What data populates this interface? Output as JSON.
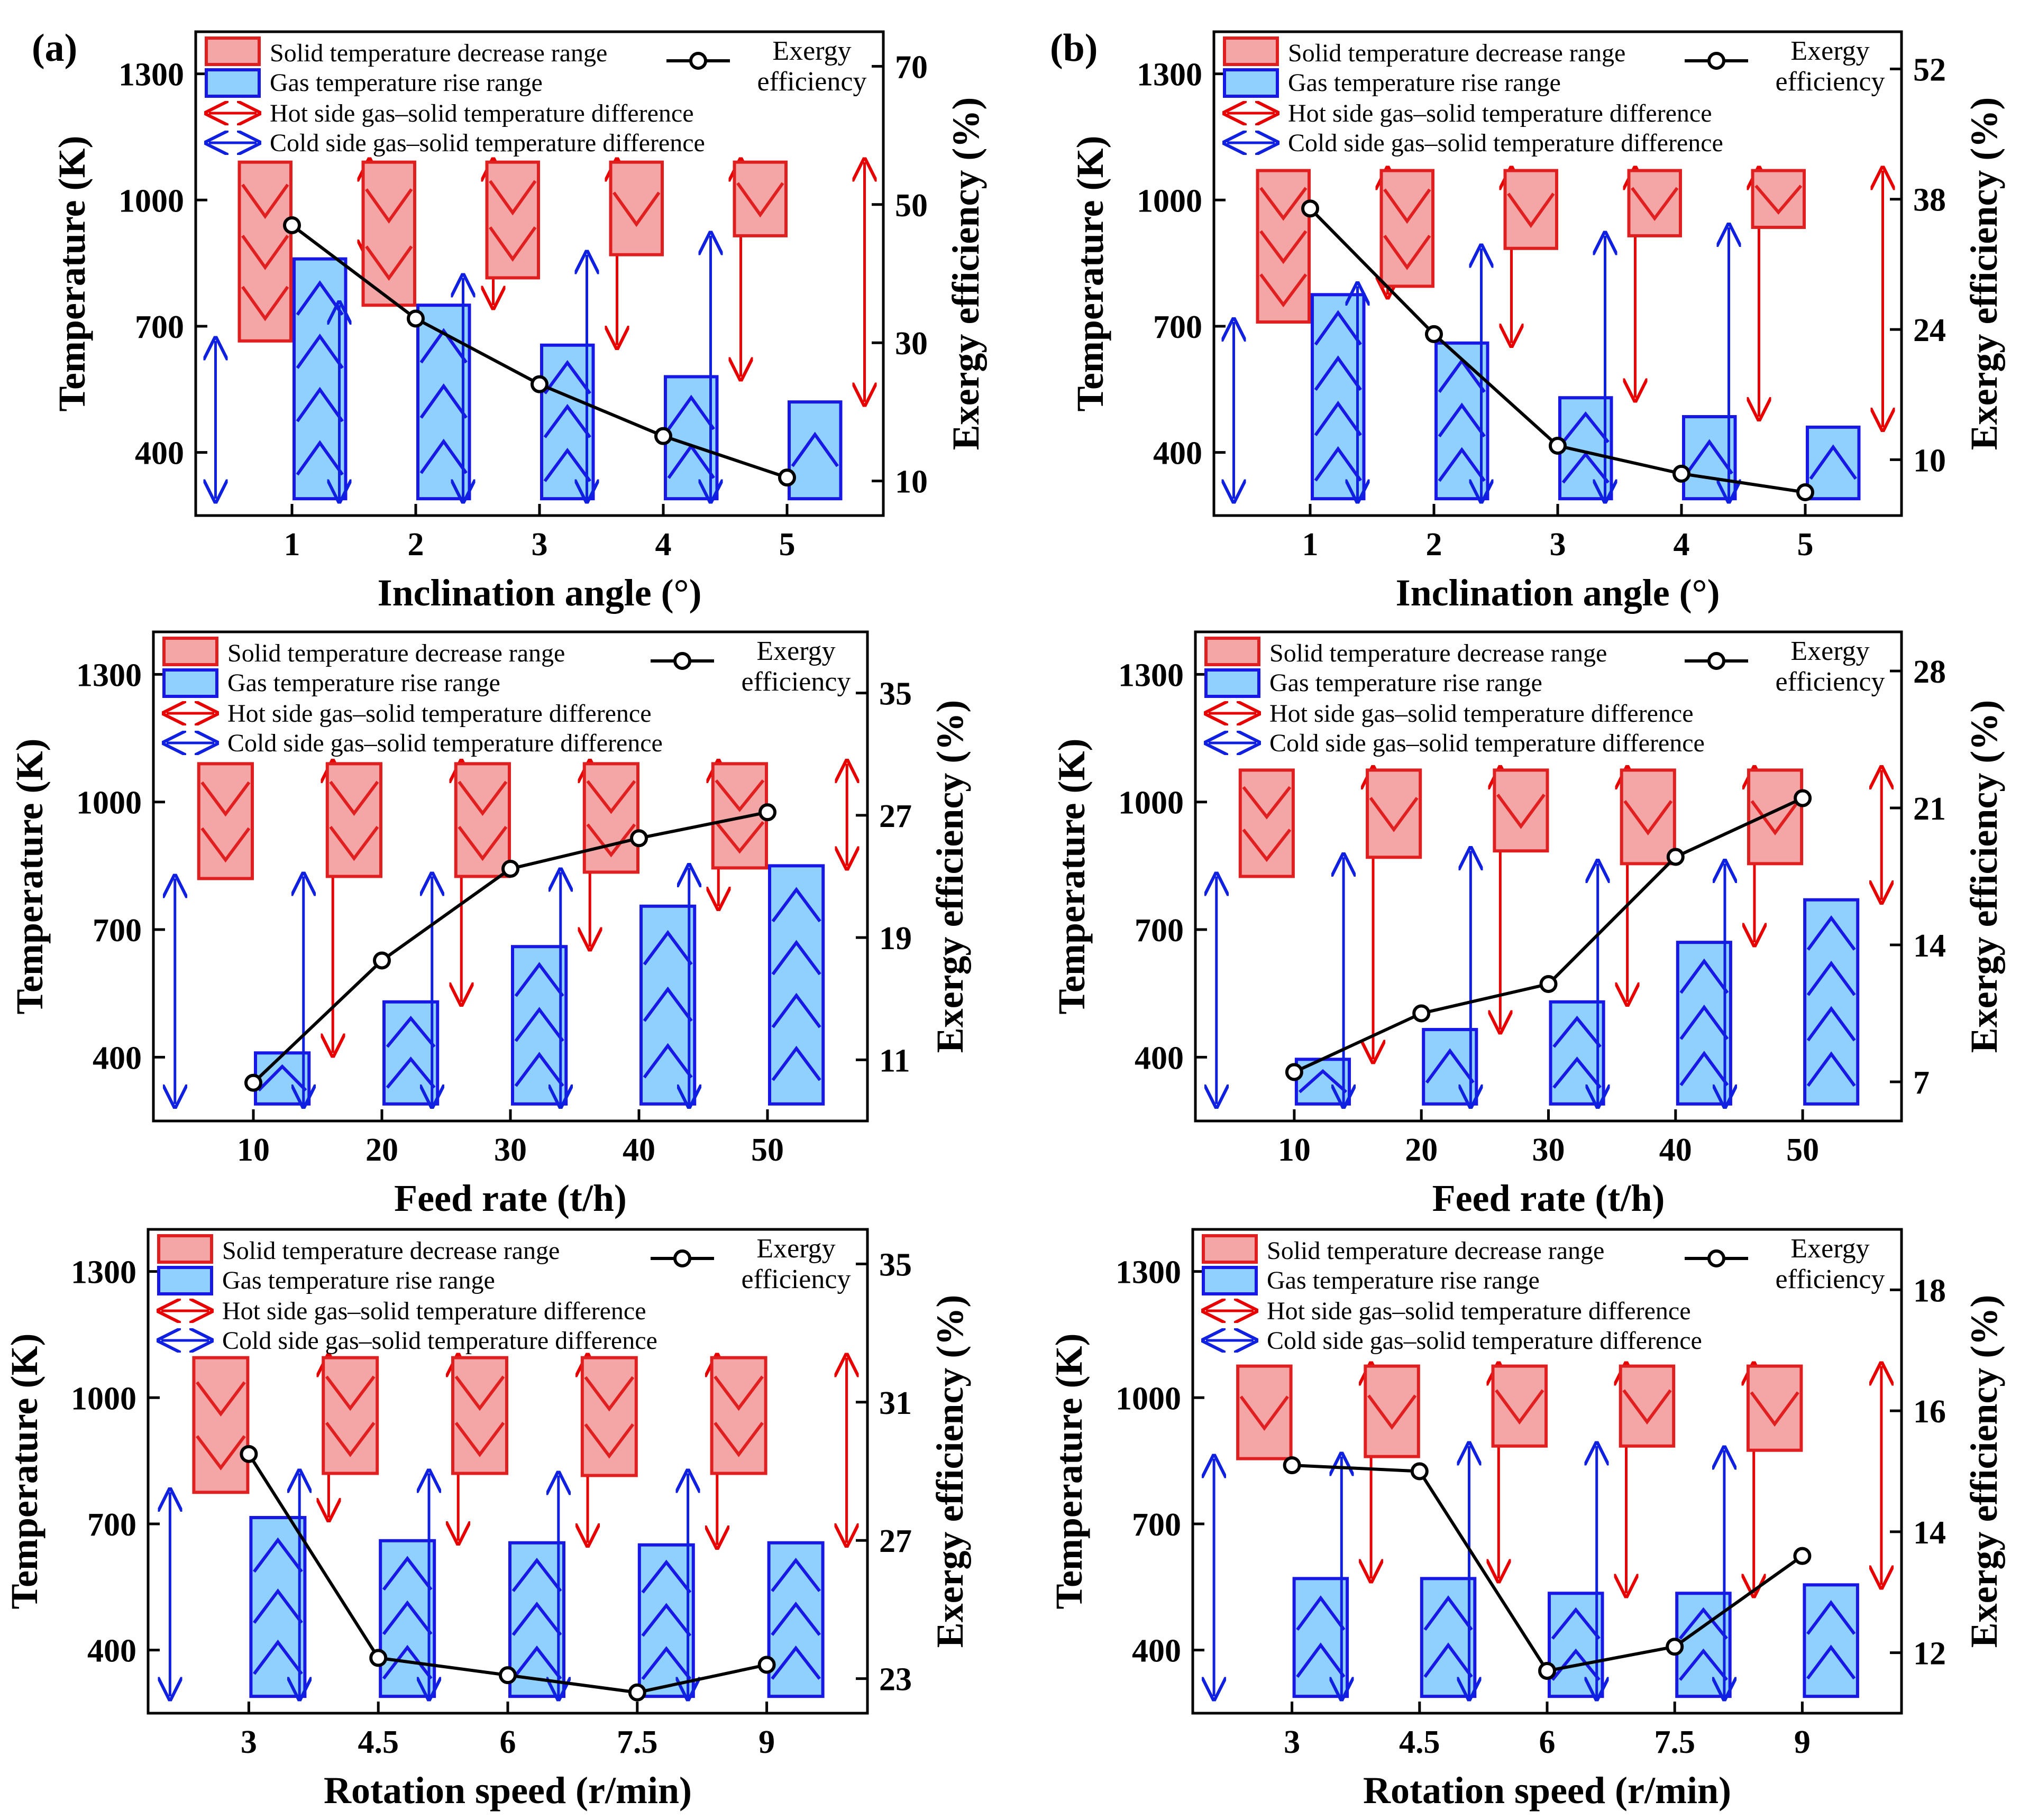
{
  "figure": {
    "colors": {
      "solid_fill": "#f4a6a6",
      "solid_stroke": "#e02020",
      "gas_fill": "#8fd0ff",
      "gas_stroke": "#1818e6",
      "hot_arrow": "#e80000",
      "cold_arrow": "#1020e0",
      "exergy_line": "#000000"
    },
    "legend": {
      "solid": "Solid temperature decrease range",
      "gas": "Gas temperature rise range",
      "hot": "Hot side gas–solid temperature difference",
      "cold": "Cold side gas–solid temperature difference",
      "exergy_line1": "Exergy",
      "exergy_line2": "efficiency"
    },
    "y_left_label": "Temperature (K)",
    "y_right_label": "Exergy efficiency (%)"
  },
  "chart_data": [
    {
      "panel_label": "(a)",
      "type": "bar",
      "xlabel": "Inclination angle (°)",
      "categories": [
        "1",
        "2",
        "3",
        "4",
        "5"
      ],
      "ylim": [
        250,
        1400
      ],
      "yticks": [
        400,
        700,
        1000,
        1300
      ],
      "y2lim": [
        5,
        75
      ],
      "y2ticks": [
        10,
        30,
        50,
        70
      ],
      "solid_top": [
        1090,
        1090,
        1090,
        1090,
        1090
      ],
      "solid_bottom": [
        665,
        750,
        815,
        870,
        915
      ],
      "gas_bottom": [
        290,
        290,
        290,
        290,
        290
      ],
      "gas_top": [
        860,
        750,
        655,
        580,
        520
      ],
      "exergy_efficiency": [
        47.0,
        33.5,
        24.0,
        16.5,
        10.5
      ]
    },
    {
      "panel_label": "(b)",
      "type": "bar",
      "xlabel": "Inclination angle (°)",
      "categories": [
        "1",
        "2",
        "3",
        "4",
        "5"
      ],
      "ylim": [
        250,
        1400
      ],
      "yticks": [
        400,
        700,
        1000,
        1300
      ],
      "y2lim": [
        4,
        56
      ],
      "y2ticks": [
        10,
        24,
        38,
        52
      ],
      "solid_top": [
        1070,
        1070,
        1070,
        1070,
        1070
      ],
      "solid_bottom": [
        710,
        795,
        885,
        915,
        935
      ],
      "gas_bottom": [
        290,
        290,
        290,
        290,
        290
      ],
      "gas_top": [
        775,
        660,
        530,
        485,
        460
      ],
      "exergy_efficiency": [
        37.0,
        23.5,
        11.5,
        8.5,
        6.5
      ]
    },
    {
      "panel_label": "",
      "type": "bar",
      "xlabel": "Feed rate (t/h)",
      "categories": [
        "10",
        "20",
        "30",
        "40",
        "50"
      ],
      "ylim": [
        250,
        1400
      ],
      "yticks": [
        400,
        700,
        1000,
        1300
      ],
      "y2lim": [
        7,
        39
      ],
      "y2ticks": [
        11,
        19,
        27,
        35
      ],
      "solid_top": [
        1090,
        1090,
        1090,
        1090,
        1090
      ],
      "solid_bottom": [
        820,
        825,
        825,
        835,
        845
      ],
      "gas_bottom": [
        290,
        290,
        290,
        290,
        290
      ],
      "gas_top": [
        410,
        530,
        660,
        755,
        850
      ],
      "exergy_efficiency": [
        9.5,
        17.5,
        23.5,
        25.5,
        27.2
      ]
    },
    {
      "panel_label": "",
      "type": "bar",
      "xlabel": "Feed rate (t/h)",
      "categories": [
        "10",
        "20",
        "30",
        "40",
        "50"
      ],
      "ylim": [
        250,
        1400
      ],
      "yticks": [
        400,
        700,
        1000,
        1300
      ],
      "y2lim": [
        5,
        30
      ],
      "y2ticks": [
        7,
        14,
        21,
        28
      ],
      "solid_top": [
        1075,
        1075,
        1075,
        1075,
        1075
      ],
      "solid_bottom": [
        825,
        870,
        885,
        855,
        855
      ],
      "gas_bottom": [
        290,
        290,
        290,
        290,
        290
      ],
      "gas_top": [
        395,
        465,
        530,
        670,
        770
      ],
      "exergy_efficiency": [
        7.5,
        10.5,
        12.0,
        18.5,
        21.5
      ]
    },
    {
      "panel_label": "",
      "type": "bar",
      "xlabel": "Rotation speed (r/min)",
      "categories": [
        "3",
        "4.5",
        "6",
        "7.5",
        "9"
      ],
      "ylim": [
        250,
        1400
      ],
      "yticks": [
        400,
        700,
        1000,
        1300
      ],
      "y2lim": [
        22,
        36
      ],
      "y2ticks": [
        23,
        27,
        31,
        35
      ],
      "solid_top": [
        1095,
        1095,
        1095,
        1095,
        1095
      ],
      "solid_bottom": [
        775,
        820,
        820,
        815,
        820
      ],
      "gas_bottom": [
        290,
        290,
        290,
        290,
        290
      ],
      "gas_top": [
        715,
        660,
        655,
        650,
        655
      ],
      "exergy_efficiency": [
        29.5,
        23.6,
        23.1,
        22.6,
        23.4
      ]
    },
    {
      "panel_label": "",
      "type": "bar",
      "xlabel": "Rotation speed (r/min)",
      "categories": [
        "3",
        "4.5",
        "6",
        "7.5",
        "9"
      ],
      "ylim": [
        250,
        1400
      ],
      "yticks": [
        400,
        700,
        1000,
        1300
      ],
      "y2lim": [
        11,
        19
      ],
      "y2ticks": [
        12,
        14,
        16,
        18
      ],
      "solid_top": [
        1075,
        1075,
        1075,
        1075,
        1075
      ],
      "solid_bottom": [
        855,
        860,
        885,
        885,
        875
      ],
      "gas_bottom": [
        290,
        290,
        290,
        290,
        290
      ],
      "gas_top": [
        570,
        570,
        535,
        535,
        555
      ],
      "exergy_efficiency": [
        15.1,
        15.0,
        11.7,
        12.1,
        13.6
      ]
    }
  ]
}
